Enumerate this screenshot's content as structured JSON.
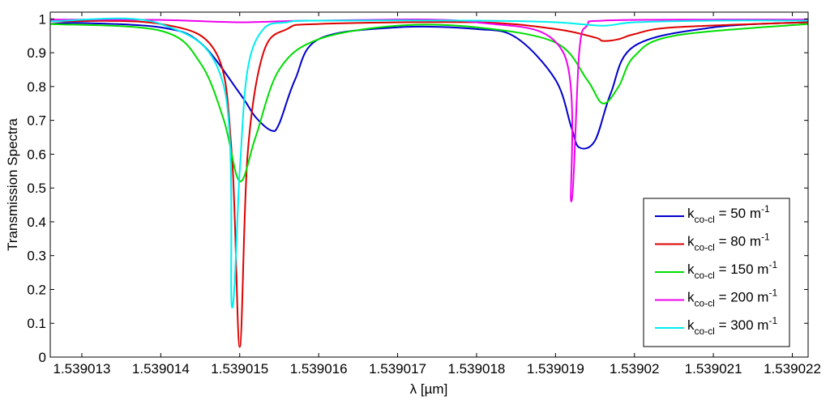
{
  "chart_data": {
    "type": "line",
    "xlabel": "λ [µm]",
    "ylabel": "Transmission Spectra",
    "xlim": [
      1.5390126,
      1.5390222
    ],
    "ylim": [
      0,
      1.02
    ],
    "x_ticks": [
      {
        "value": 1.539013,
        "label": "1.539013"
      },
      {
        "value": 1.539014,
        "label": "1.539014"
      },
      {
        "value": 1.539015,
        "label": "1.539015"
      },
      {
        "value": 1.539016,
        "label": "1.539016"
      },
      {
        "value": 1.539017,
        "label": "1.539017"
      },
      {
        "value": 1.539018,
        "label": "1.539018"
      },
      {
        "value": 1.539019,
        "label": "1.539019"
      },
      {
        "value": 1.53902,
        "label": "1.53902"
      },
      {
        "value": 1.539021,
        "label": "1.539021"
      },
      {
        "value": 1.539022,
        "label": "1.539022"
      }
    ],
    "y_ticks": [
      {
        "value": 0,
        "label": "0"
      },
      {
        "value": 0.1,
        "label": "0.1"
      },
      {
        "value": 0.2,
        "label": "0.2"
      },
      {
        "value": 0.3,
        "label": "0.3"
      },
      {
        "value": 0.4,
        "label": "0.4"
      },
      {
        "value": 0.5,
        "label": "0.5"
      },
      {
        "value": 0.6,
        "label": "0.6"
      },
      {
        "value": 0.7,
        "label": "0.7"
      },
      {
        "value": 0.8,
        "label": "0.8"
      },
      {
        "value": 0.9,
        "label": "0.9"
      },
      {
        "value": 1,
        "label": "1"
      }
    ],
    "grid": false,
    "legend_position": "bottom-right",
    "series": [
      {
        "name": "k co-cl = 50 m-1",
        "legend_main": "k",
        "legend_sub": "co-cl",
        "legend_mid": " = 50 m",
        "legend_sup": "-1",
        "color": "#0000cc",
        "x": [
          1.5390126,
          1.539013,
          1.539014,
          1.5390145,
          1.539015,
          1.5390152,
          1.5390154,
          1.5390155,
          1.5390157,
          1.539016,
          1.539017,
          1.539018,
          1.5390185,
          1.539019,
          1.5390192,
          1.5390193,
          1.5390195,
          1.5390197,
          1.53902,
          1.539021,
          1.5390222
        ],
        "y": [
          0.985,
          0.988,
          0.975,
          0.93,
          0.78,
          0.71,
          0.67,
          0.69,
          0.82,
          0.94,
          0.975,
          0.97,
          0.945,
          0.82,
          0.68,
          0.62,
          0.64,
          0.78,
          0.92,
          0.975,
          0.99
        ]
      },
      {
        "name": "k co-cl = 80 m-1",
        "legend_main": "k",
        "legend_sub": "co-cl",
        "legend_mid": " = 80 m",
        "legend_sup": "-1",
        "color": "#dd0000",
        "x": [
          1.5390126,
          1.539014,
          1.5390147,
          1.5390149,
          1.539015,
          1.5390151,
          1.5390153,
          1.5390156,
          1.539016,
          1.539018,
          1.539019,
          1.5390195,
          1.5390196,
          1.5390198,
          1.53902,
          1.5390205,
          1.5390222
        ],
        "y": [
          0.993,
          0.985,
          0.9,
          0.6,
          0.03,
          0.6,
          0.9,
          0.97,
          0.985,
          0.99,
          0.97,
          0.945,
          0.935,
          0.94,
          0.955,
          0.975,
          0.99
        ]
      },
      {
        "name": "k co-cl = 150 m-1",
        "legend_main": "k",
        "legend_sub": "co-cl",
        "legend_mid": " = 150 m",
        "legend_sup": "-1",
        "color": "#00dd00",
        "x": [
          1.5390126,
          1.539014,
          1.5390145,
          1.5390148,
          1.539015,
          1.5390152,
          1.5390155,
          1.539016,
          1.539017,
          1.539018,
          1.539019,
          1.5390194,
          1.5390196,
          1.5390198,
          1.53902,
          1.5390205,
          1.5390222
        ],
        "y": [
          0.985,
          0.965,
          0.87,
          0.7,
          0.52,
          0.65,
          0.85,
          0.94,
          0.98,
          0.975,
          0.93,
          0.82,
          0.75,
          0.8,
          0.89,
          0.95,
          0.985
        ]
      },
      {
        "name": "k co-cl = 200 m-1",
        "legend_main": "k",
        "legend_sub": "co-cl",
        "legend_mid": " = 200 m",
        "legend_sup": "-1",
        "color": "#ee00ee",
        "x": [
          1.5390126,
          1.539014,
          1.539015,
          1.539016,
          1.539018,
          1.5390191,
          1.5390192,
          1.5390193,
          1.5390194,
          1.5390196,
          1.539021,
          1.5390222
        ],
        "y": [
          0.998,
          0.997,
          0.99,
          0.995,
          0.99,
          0.9,
          0.46,
          0.9,
          0.98,
          0.995,
          0.998,
          0.998
        ]
      },
      {
        "name": "k co-cl = 300 m-1",
        "legend_main": "k",
        "legend_sub": "co-cl",
        "legend_mid": " = 300 m",
        "legend_sup": "-1",
        "color": "#00eeee",
        "x": [
          1.5390126,
          1.539014,
          1.5390148,
          1.5390149,
          1.539015,
          1.5390151,
          1.5390153,
          1.5390156,
          1.539016,
          1.539018,
          1.539019,
          1.5390196,
          1.53902,
          1.539021,
          1.5390222
        ],
        "y": [
          0.993,
          0.985,
          0.8,
          0.15,
          0.55,
          0.85,
          0.97,
          0.99,
          0.995,
          0.995,
          0.99,
          0.98,
          0.99,
          0.995,
          0.995
        ]
      }
    ]
  }
}
